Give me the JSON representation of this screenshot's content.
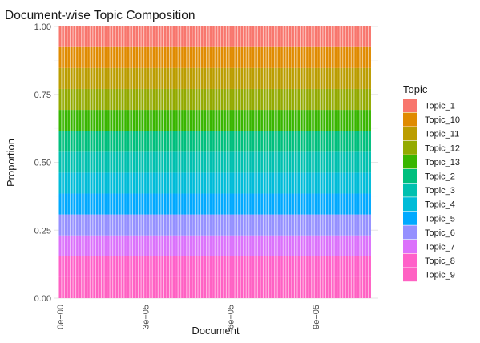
{
  "chart_data": {
    "type": "bar",
    "stacked": true,
    "title": "Document-wise Topic Composition",
    "xlabel": "Document",
    "ylabel": "Proportion",
    "ylim": [
      0,
      1
    ],
    "xlim": [
      -20000,
      1120000
    ],
    "y_ticks": [
      {
        "value": 0,
        "label": "0.00"
      },
      {
        "value": 0.25,
        "label": "0.25"
      },
      {
        "value": 0.5,
        "label": "0.50"
      },
      {
        "value": 0.75,
        "label": "0.75"
      },
      {
        "value": 1,
        "label": "1.00"
      }
    ],
    "x_ticks": [
      {
        "value": 0,
        "label": "0e+00"
      },
      {
        "value": 300000,
        "label": "3e+05"
      },
      {
        "value": 600000,
        "label": "6e+05"
      },
      {
        "value": 900000,
        "label": "9e+05"
      }
    ],
    "grid": true,
    "legend_title": "Topic",
    "legend_position": "right",
    "series": [
      {
        "name": "Topic_9",
        "value": 0.077,
        "color": "#FF61C3"
      },
      {
        "name": "Topic_8",
        "value": 0.077,
        "color": "#FF61C9"
      },
      {
        "name": "Topic_7",
        "value": 0.077,
        "color": "#DB72FB"
      },
      {
        "name": "Topic_6",
        "value": 0.077,
        "color": "#9590FF"
      },
      {
        "name": "Topic_5",
        "value": 0.077,
        "color": "#00A9FF"
      },
      {
        "name": "Topic_4",
        "value": 0.077,
        "color": "#00BCD8"
      },
      {
        "name": "Topic_3",
        "value": 0.077,
        "color": "#00C0AF"
      },
      {
        "name": "Topic_2",
        "value": 0.077,
        "color": "#00BF7D"
      },
      {
        "name": "Topic_13",
        "value": 0.077,
        "color": "#39B600"
      },
      {
        "name": "Topic_12",
        "value": 0.077,
        "color": "#93AA00"
      },
      {
        "name": "Topic_11",
        "value": 0.077,
        "color": "#BB9D00"
      },
      {
        "name": "Topic_10",
        "value": 0.077,
        "color": "#E08B00"
      },
      {
        "name": "Topic_1",
        "value": 0.076,
        "color": "#F8766D"
      }
    ],
    "legend_order": [
      "Topic_1",
      "Topic_10",
      "Topic_11",
      "Topic_12",
      "Topic_13",
      "Topic_2",
      "Topic_3",
      "Topic_4",
      "Topic_5",
      "Topic_6",
      "Topic_7",
      "Topic_8",
      "Topic_9"
    ],
    "documents": {
      "first": 0,
      "last": 1090000,
      "count": 110
    }
  }
}
